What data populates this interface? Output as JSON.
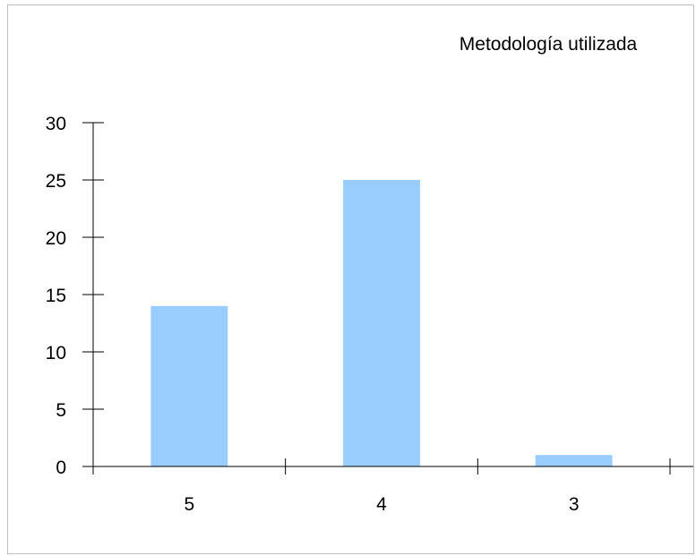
{
  "chart_data": {
    "type": "bar",
    "title": "Metodología utilizada",
    "categories": [
      "5",
      "4",
      "3"
    ],
    "values": [
      14,
      25,
      1
    ],
    "ylim": [
      0,
      30
    ],
    "yticks": [
      0,
      5,
      10,
      15,
      20,
      25,
      30
    ],
    "xlabel": "",
    "ylabel": "",
    "grid": false,
    "legend": "none",
    "colors": {
      "bar": "#99ccff",
      "axis": "#000000",
      "border": "#bfbfbf"
    }
  }
}
